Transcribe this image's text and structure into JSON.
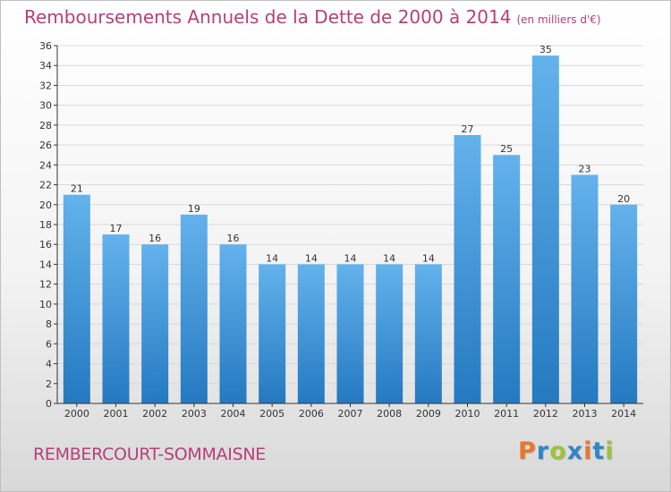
{
  "header": {
    "title": "Remboursements Annuels de la Dette de 2000 à 2014",
    "unit": "(en milliers d'€)"
  },
  "footer": {
    "commune": "REMBERCOURT-SOMMAISNE",
    "logo": "Proxiti",
    "logo_colors": [
      "#e8762c",
      "#2f86c9",
      "#9ac43c",
      "#2f86c9",
      "#e8762c",
      "#2f86c9",
      "#9ac43c"
    ]
  },
  "colors": {
    "bar_light": "#63b2ec",
    "bar_dark": "#2479c0",
    "grid": "#d9d9d9",
    "axis": "#333333",
    "text": "#333333",
    "title": "#b4407a"
  },
  "chart_data": {
    "type": "bar",
    "title": "Remboursements Annuels de la Dette de 2000 à 2014",
    "xlabel": "",
    "ylabel": "",
    "categories": [
      "2000",
      "2001",
      "2002",
      "2003",
      "2004",
      "2005",
      "2006",
      "2007",
      "2008",
      "2009",
      "2010",
      "2011",
      "2012",
      "2013",
      "2014"
    ],
    "values": [
      21,
      17,
      16,
      19,
      16,
      14,
      14,
      14,
      14,
      14,
      27,
      25,
      35,
      23,
      20
    ],
    "ylim": [
      0,
      36
    ],
    "yticks": [
      0,
      2,
      4,
      6,
      8,
      10,
      12,
      14,
      16,
      18,
      20,
      22,
      24,
      26,
      28,
      30,
      32,
      34,
      36
    ],
    "grid": true,
    "legend": "none"
  }
}
